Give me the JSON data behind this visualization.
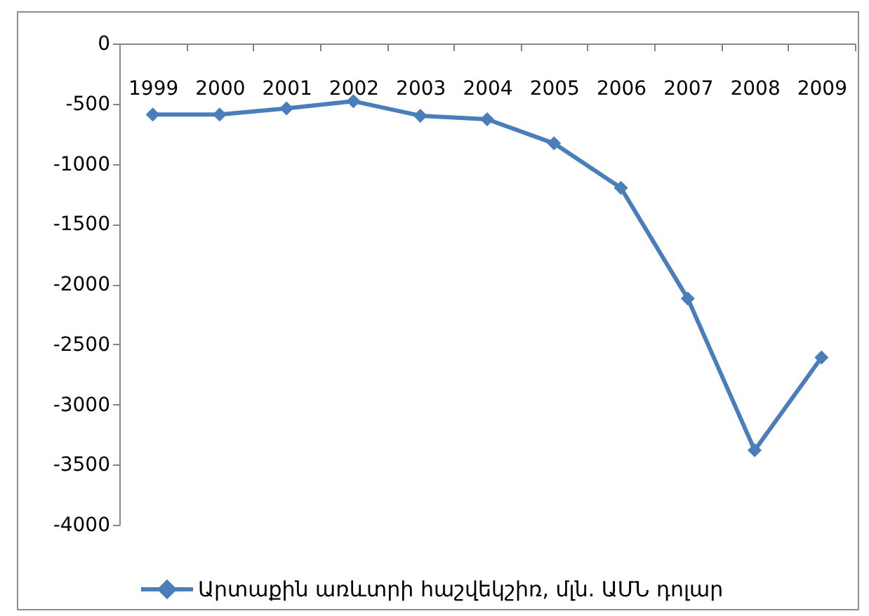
{
  "chart_data": {
    "type": "line",
    "categories": [
      "1999",
      "2000",
      "2001",
      "2002",
      "2003",
      "2004",
      "2005",
      "2006",
      "2007",
      "2008",
      "2009"
    ],
    "series": [
      {
        "name": "Արտաքին առևտրի հաշվեկշիռ, մլն. ԱՄՆ դոլար",
        "color": "#4a7ebb",
        "values": [
          -590,
          -590,
          -540,
          -480,
          -600,
          -630,
          -830,
          -1200,
          -2120,
          -3380,
          -2610
        ]
      }
    ],
    "ylim": [
      -4000,
      0
    ],
    "yticks": [
      0,
      -500,
      -1000,
      -1500,
      -2000,
      -2500,
      -3000,
      -3500,
      -4000
    ],
    "legend": "bottom",
    "marker": "diamond"
  }
}
